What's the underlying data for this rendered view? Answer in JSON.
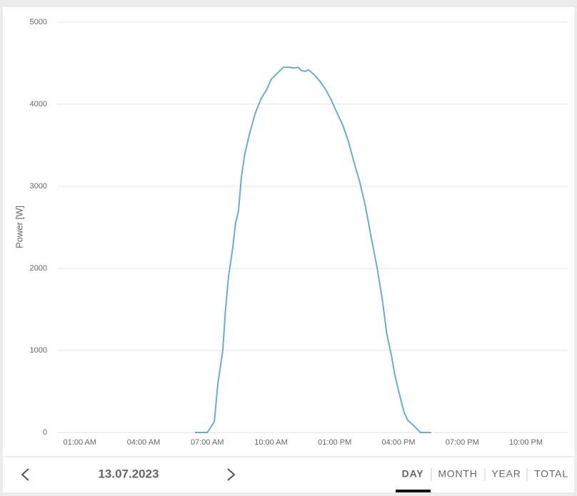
{
  "chart_data": {
    "type": "line",
    "ylabel": "Power [W]",
    "color": "#6aaec6",
    "x": [
      6.42,
      7.0,
      7.33,
      7.5,
      7.73,
      7.86,
      8.0,
      8.2,
      8.33,
      8.47,
      8.6,
      8.77,
      9.0,
      9.27,
      9.54,
      9.8,
      10.0,
      10.27,
      10.58,
      10.85,
      11.1,
      11.28,
      11.42,
      11.63,
      11.76,
      12.03,
      12.3,
      12.57,
      12.84,
      13.1,
      13.37,
      13.64,
      13.9,
      14.18,
      14.45,
      14.7,
      15.0,
      15.25,
      15.45,
      15.66,
      15.83,
      16.06,
      16.26,
      16.43,
      16.73,
      17.03,
      17.54
    ],
    "values": [
      0,
      0,
      130,
      600,
      1000,
      1500,
      1900,
      2250,
      2550,
      2700,
      3100,
      3400,
      3650,
      3900,
      4070,
      4180,
      4300,
      4370,
      4450,
      4450,
      4440,
      4450,
      4410,
      4400,
      4420,
      4360,
      4280,
      4180,
      4050,
      3900,
      3750,
      3550,
      3300,
      3050,
      2750,
      2400,
      2000,
      1600,
      1200,
      950,
      700,
      450,
      250,
      150,
      80,
      0,
      0
    ],
    "xlim": [
      0,
      24
    ],
    "xticks": [
      {
        "value": 1,
        "label": "01:00 AM"
      },
      {
        "value": 4,
        "label": "04:00 AM"
      },
      {
        "value": 7,
        "label": "07:00 AM"
      },
      {
        "value": 10,
        "label": "10:00 AM"
      },
      {
        "value": 13,
        "label": "01:00 PM"
      },
      {
        "value": 16,
        "label": "04:00 PM"
      },
      {
        "value": 19,
        "label": "07:00 PM"
      },
      {
        "value": 22,
        "label": "10:00 PM"
      }
    ],
    "ylim": [
      0,
      5000
    ],
    "yticks": [
      0,
      1000,
      2000,
      3000,
      4000,
      5000
    ],
    "grid": true
  },
  "ui": {
    "date": "13.07.2023",
    "tabs": [
      "DAY",
      "MONTH",
      "YEAR",
      "TOTAL"
    ],
    "active_tab": 0
  }
}
